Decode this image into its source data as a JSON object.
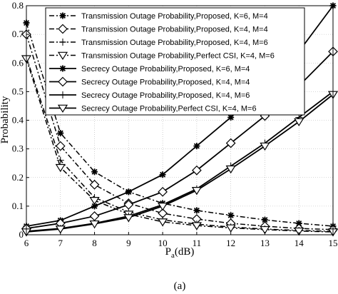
{
  "chart_data": {
    "type": "line",
    "xlabel_main": "P",
    "xlabel_sub": "a",
    "xlabel_unit": "(dB)",
    "ylabel": "Probability",
    "caption": "(a)",
    "xlim": [
      6,
      15
    ],
    "ylim": [
      0,
      0.8
    ],
    "xticks": [
      6,
      7,
      8,
      9,
      10,
      11,
      12,
      13,
      14,
      15
    ],
    "yticks": [
      0,
      0.1,
      0.2,
      0.3,
      0.4,
      0.5,
      0.6,
      0.7,
      0.8
    ],
    "grid": true,
    "legend_position": "top-left",
    "x": [
      6,
      7,
      8,
      9,
      10,
      11,
      12,
      13,
      14,
      15
    ],
    "series": [
      {
        "name": "Transmission Outage Probability,Proposed, K=6, M=4",
        "marker": "asterisk",
        "dash": "dashdot",
        "values": [
          0.74,
          0.355,
          0.22,
          0.15,
          0.11,
          0.085,
          0.068,
          0.052,
          0.04,
          0.03
        ]
      },
      {
        "name": "Transmission Outage Probability,Proposed, K=4, M=4",
        "marker": "diamond",
        "dash": "dashdot",
        "values": [
          0.7,
          0.31,
          0.175,
          0.11,
          0.075,
          0.055,
          0.04,
          0.03,
          0.022,
          0.018
        ]
      },
      {
        "name": "Transmission Outage Probability,Proposed, K=4, M=6",
        "marker": "plus",
        "dash": "dashdot",
        "values": [
          0.62,
          0.26,
          0.13,
          0.08,
          0.052,
          0.037,
          0.027,
          0.02,
          0.015,
          0.012
        ]
      },
      {
        "name": "Transmission Outage Probability,Perfect CSI, K=4, M=6",
        "marker": "triangle",
        "dash": "dashdot",
        "values": [
          0.615,
          0.235,
          0.12,
          0.072,
          0.045,
          0.032,
          0.024,
          0.018,
          0.013,
          0.01
        ]
      },
      {
        "name": "Secrecy Outage Probability,Proposed, K=6, M=4",
        "marker": "asterisk",
        "dash": "solid",
        "values": [
          0.03,
          0.05,
          0.1,
          0.15,
          0.21,
          0.31,
          0.41,
          0.52,
          0.64,
          0.8
        ]
      },
      {
        "name": "Secrecy Outage Probability,Proposed, K=4, M=4",
        "marker": "diamond",
        "dash": "solid",
        "values": [
          0.022,
          0.04,
          0.065,
          0.105,
          0.15,
          0.225,
          0.32,
          0.415,
          0.52,
          0.64
        ]
      },
      {
        "name": "Secrecy Outage Probability,Proposed, K=4, M=6",
        "marker": "plus",
        "dash": "solid",
        "values": [
          0.012,
          0.022,
          0.04,
          0.065,
          0.105,
          0.16,
          0.24,
          0.32,
          0.41,
          0.5
        ]
      },
      {
        "name": "Secrecy Outage Probability,Perfect CSI, K=4, M=6",
        "marker": "triangle",
        "dash": "solid",
        "values": [
          0.01,
          0.02,
          0.038,
          0.06,
          0.1,
          0.155,
          0.23,
          0.31,
          0.395,
          0.49
        ]
      }
    ]
  }
}
